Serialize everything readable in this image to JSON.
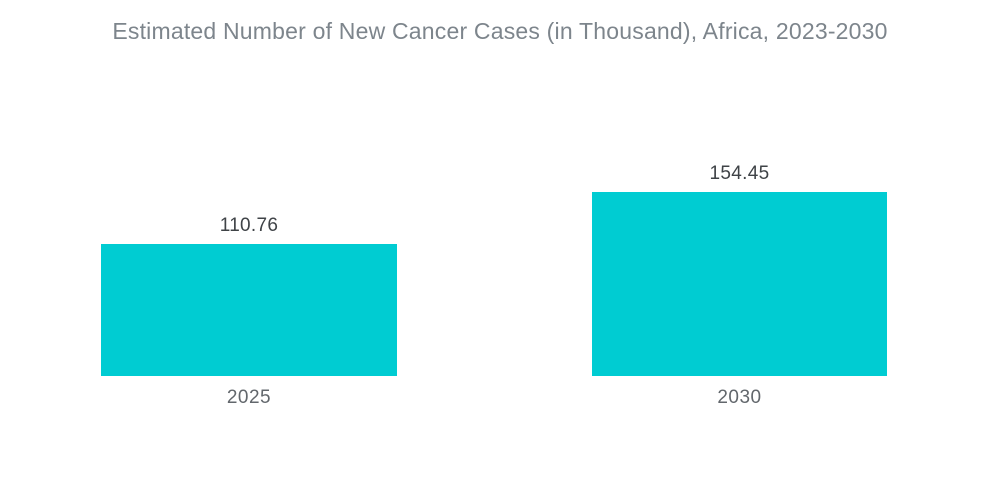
{
  "chart_data": {
    "type": "bar",
    "title": "Estimated Number of New Cancer Cases (in Thousand), Africa, 2023-2030",
    "categories": [
      "2025",
      "2030"
    ],
    "values": [
      110.76,
      154.45
    ],
    "value_labels": [
      "110.76",
      "154.45"
    ],
    "xlabel": "",
    "ylabel": "",
    "ylim": [
      0,
      154.45
    ],
    "grid": false,
    "legend": "none",
    "bar_color": "#00CCD2",
    "background_color": "#FFFFFF",
    "title_color": "#7D858C",
    "value_label_color": "#3F4347",
    "category_label_color": "#62676C"
  }
}
